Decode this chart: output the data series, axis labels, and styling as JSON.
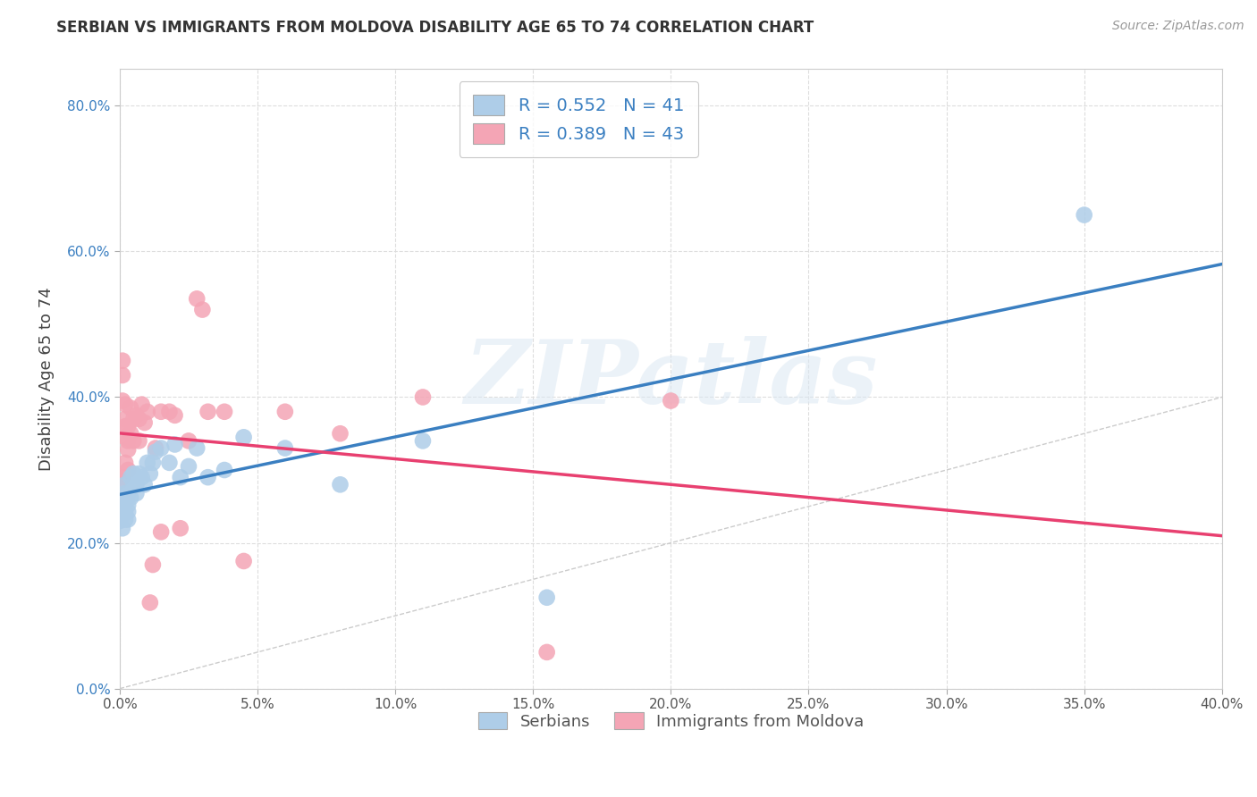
{
  "title": "SERBIAN VS IMMIGRANTS FROM MOLDOVA DISABILITY AGE 65 TO 74 CORRELATION CHART",
  "source": "Source: ZipAtlas.com",
  "ylabel": "Disability Age 65 to 74",
  "xlim": [
    0.0,
    0.4
  ],
  "ylim": [
    0.0,
    0.85
  ],
  "xticks": [
    0.0,
    0.05,
    0.1,
    0.15,
    0.2,
    0.25,
    0.3,
    0.35,
    0.4
  ],
  "yticks": [
    0.0,
    0.2,
    0.4,
    0.6,
    0.8
  ],
  "background_color": "#ffffff",
  "grid_color": "#dddddd",
  "watermark": "ZIPatlas",
  "series_blue": {
    "label": "Serbians",
    "R": 0.552,
    "N": 41,
    "color": "#aecde8",
    "line_color": "#3a7fc1",
    "x": [
      0.0,
      0.001,
      0.001,
      0.001,
      0.001,
      0.002,
      0.002,
      0.002,
      0.002,
      0.002,
      0.003,
      0.003,
      0.003,
      0.003,
      0.004,
      0.004,
      0.005,
      0.005,
      0.006,
      0.006,
      0.007,
      0.008,
      0.009,
      0.01,
      0.011,
      0.012,
      0.013,
      0.015,
      0.018,
      0.02,
      0.022,
      0.025,
      0.028,
      0.032,
      0.038,
      0.045,
      0.06,
      0.08,
      0.11,
      0.155,
      0.35
    ],
    "y": [
      0.23,
      0.24,
      0.26,
      0.245,
      0.22,
      0.268,
      0.242,
      0.232,
      0.28,
      0.258,
      0.252,
      0.243,
      0.232,
      0.268,
      0.262,
      0.29,
      0.295,
      0.28,
      0.268,
      0.28,
      0.295,
      0.29,
      0.28,
      0.31,
      0.295,
      0.31,
      0.325,
      0.33,
      0.31,
      0.335,
      0.29,
      0.305,
      0.33,
      0.29,
      0.3,
      0.345,
      0.33,
      0.28,
      0.34,
      0.125,
      0.65
    ]
  },
  "series_pink": {
    "label": "Immigrants from Moldova",
    "R": 0.389,
    "N": 43,
    "color": "#f4a5b5",
    "line_color": "#e84070",
    "x": [
      0.0,
      0.001,
      0.001,
      0.001,
      0.001,
      0.002,
      0.002,
      0.002,
      0.002,
      0.002,
      0.003,
      0.003,
      0.003,
      0.003,
      0.004,
      0.004,
      0.005,
      0.005,
      0.006,
      0.007,
      0.007,
      0.008,
      0.009,
      0.01,
      0.011,
      0.012,
      0.013,
      0.015,
      0.018,
      0.02,
      0.022,
      0.025,
      0.028,
      0.032,
      0.038,
      0.045,
      0.06,
      0.08,
      0.11,
      0.155,
      0.2,
      0.03,
      0.015
    ],
    "y": [
      0.285,
      0.43,
      0.45,
      0.29,
      0.395,
      0.36,
      0.31,
      0.39,
      0.345,
      0.37,
      0.3,
      0.34,
      0.36,
      0.328,
      0.35,
      0.385,
      0.37,
      0.34,
      0.375,
      0.34,
      0.37,
      0.39,
      0.365,
      0.38,
      0.118,
      0.17,
      0.33,
      0.38,
      0.38,
      0.375,
      0.22,
      0.34,
      0.535,
      0.38,
      0.38,
      0.175,
      0.38,
      0.35,
      0.4,
      0.05,
      0.395,
      0.52,
      0.215
    ]
  },
  "diagonal_line": {
    "x": [
      0.0,
      0.84
    ],
    "y": [
      0.0,
      0.84
    ],
    "color": "#cccccc",
    "linestyle": "dashed"
  }
}
